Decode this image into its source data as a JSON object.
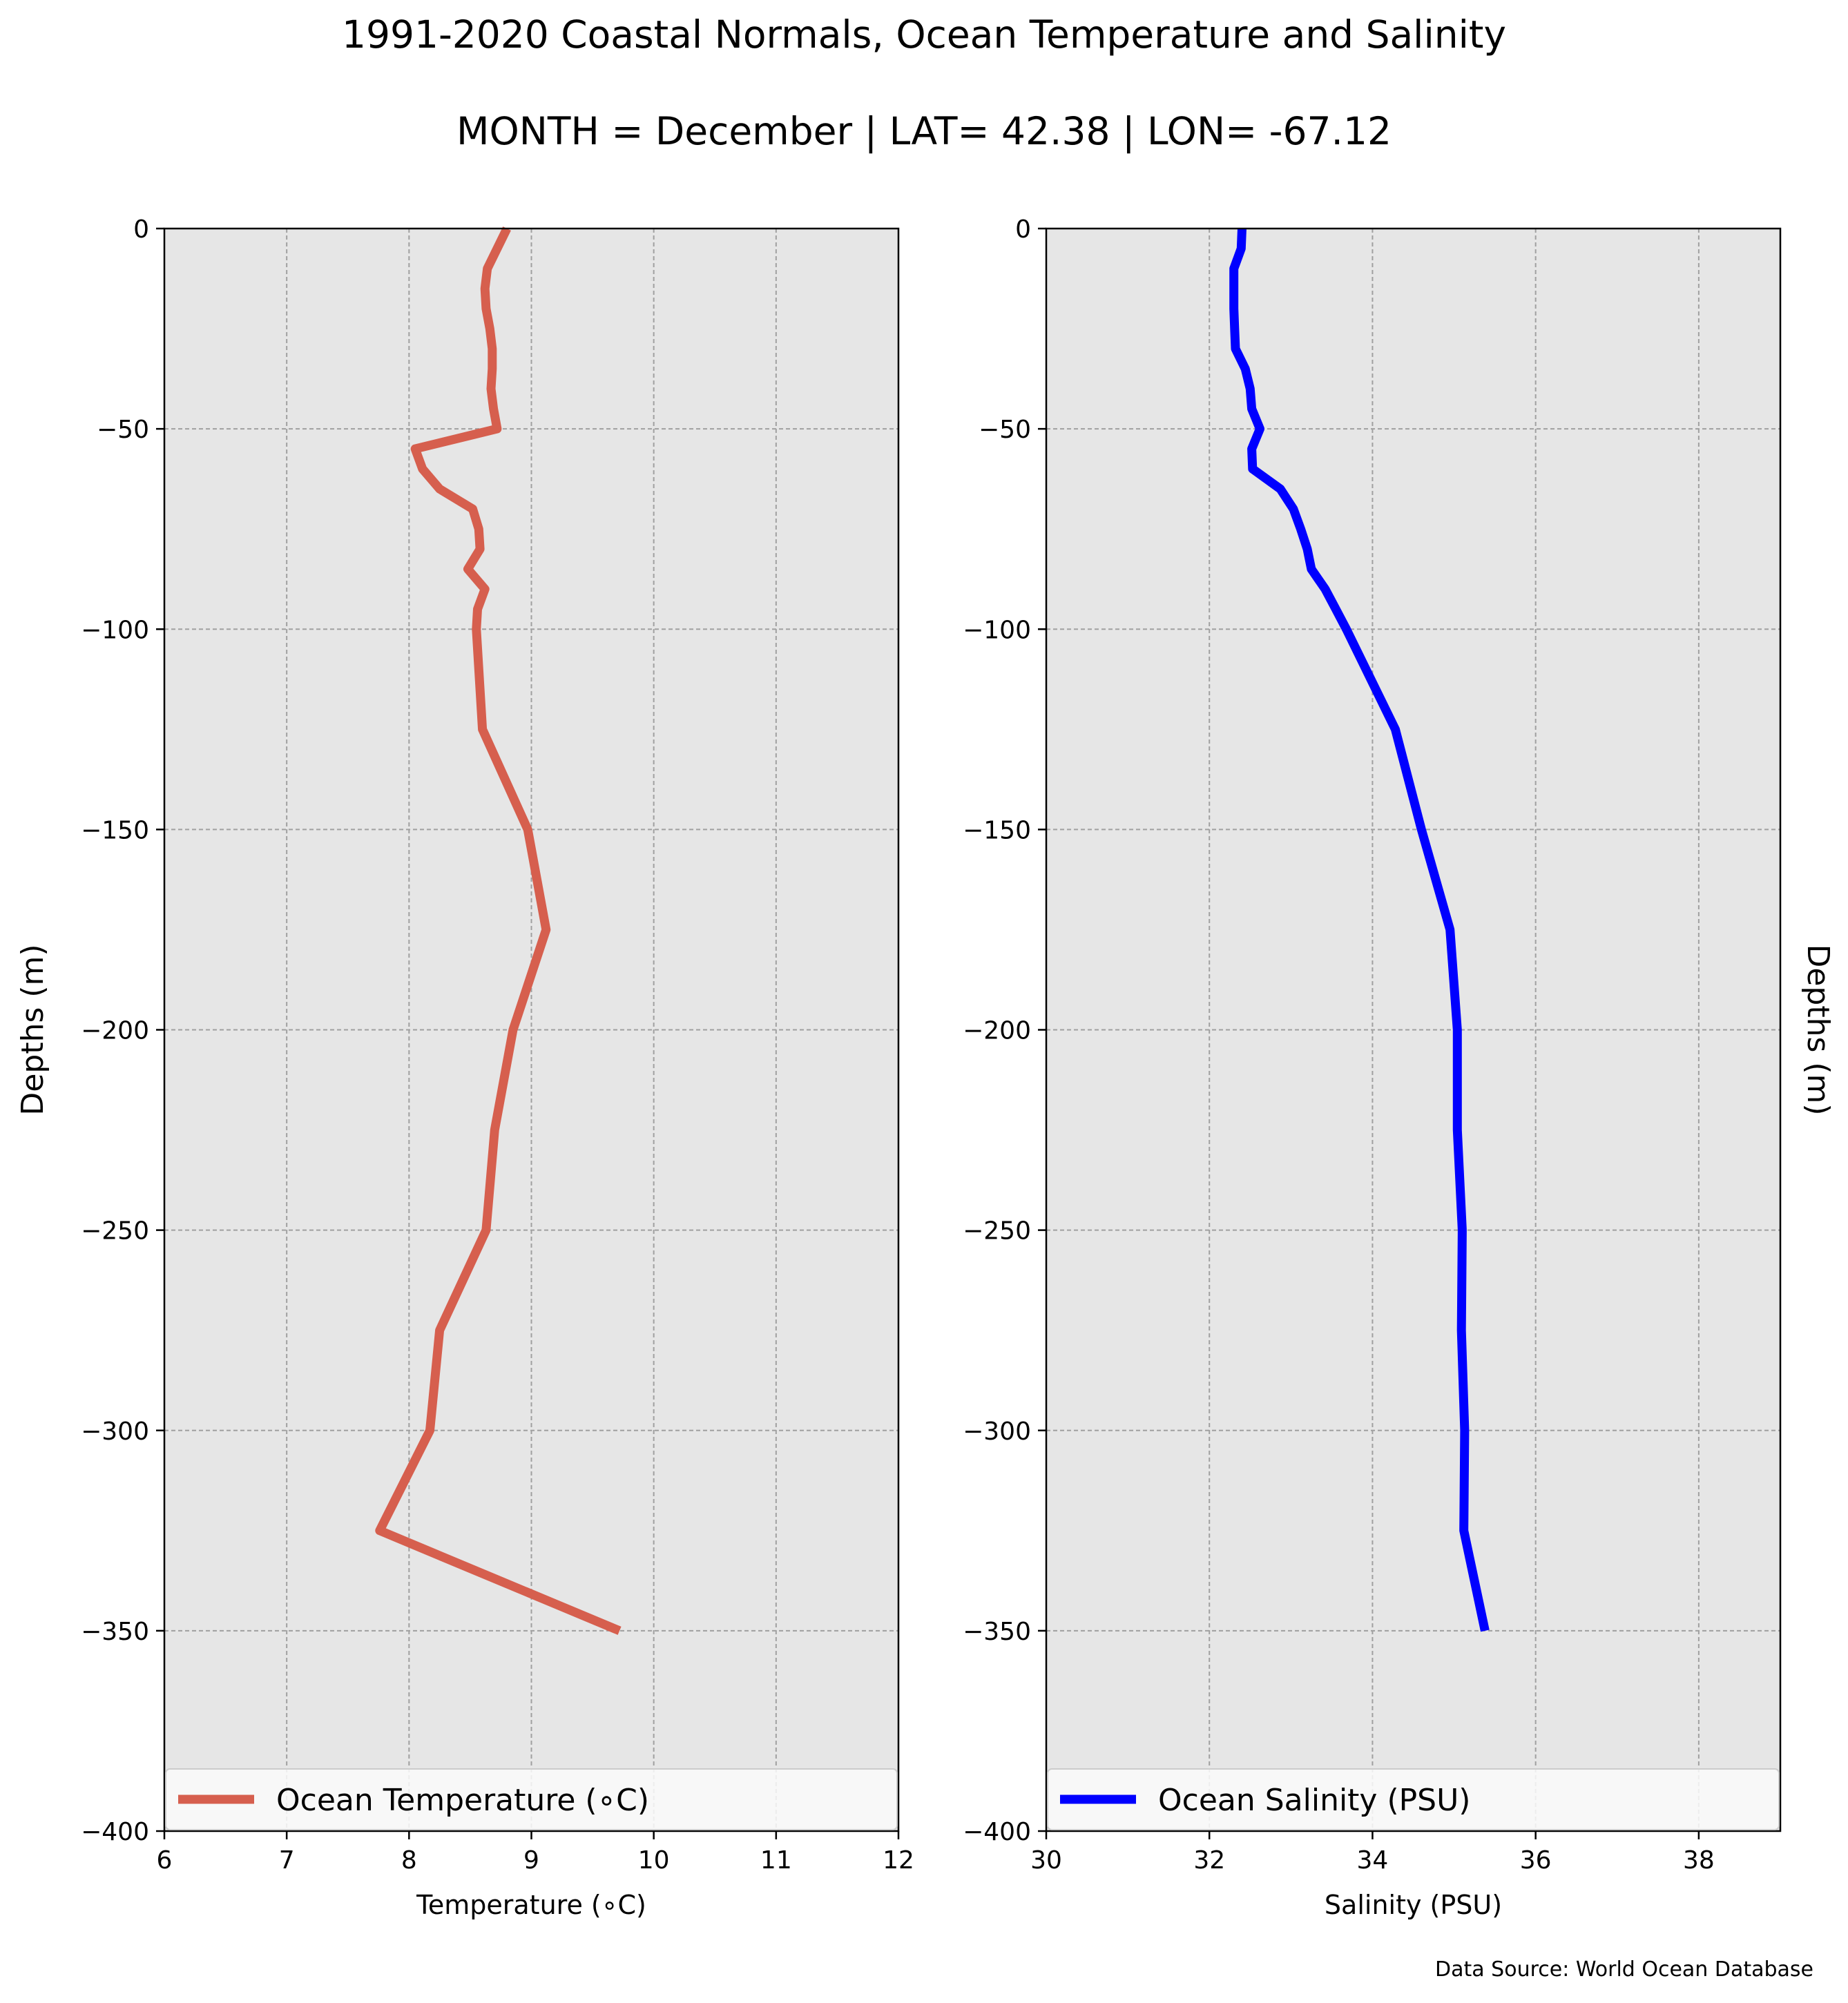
{
  "title": "1991-2020 Coastal Normals, Ocean Temperature and Salinity",
  "subtitle": "MONTH = December | LAT= 42.38 | LON= -67.12",
  "source": "Data Source: World Ocean Database",
  "chart_data": [
    {
      "type": "line",
      "xlabel": "Temperature (∘C)",
      "ylabel": "Depths (m)",
      "xlim": [
        6,
        12
      ],
      "ylim": [
        -400,
        0
      ],
      "xticks": [
        6,
        7,
        8,
        9,
        10,
        11,
        12
      ],
      "yticks": [
        0,
        -50,
        -100,
        -150,
        -200,
        -250,
        -300,
        -350,
        -400
      ],
      "ytick_labels": [
        "0",
        "−50",
        "−100",
        "−150",
        "−200",
        "−250",
        "−300",
        "−350",
        "−400"
      ],
      "grid": true,
      "legend_position": "bottom",
      "series": [
        {
          "name": "Ocean Temperature (∘C)",
          "color": "#d65f4e",
          "points": [
            [
              8.8,
              0
            ],
            [
              8.72,
              -5
            ],
            [
              8.64,
              -10
            ],
            [
              8.62,
              -15
            ],
            [
              8.63,
              -20
            ],
            [
              8.66,
              -25
            ],
            [
              8.68,
              -30
            ],
            [
              8.68,
              -35
            ],
            [
              8.67,
              -40
            ],
            [
              8.69,
              -45
            ],
            [
              8.72,
              -50
            ],
            [
              8.05,
              -55
            ],
            [
              8.11,
              -60
            ],
            [
              8.25,
              -65
            ],
            [
              8.52,
              -70
            ],
            [
              8.57,
              -75
            ],
            [
              8.58,
              -80
            ],
            [
              8.48,
              -85
            ],
            [
              8.62,
              -90
            ],
            [
              8.56,
              -95
            ],
            [
              8.55,
              -100
            ],
            [
              8.6,
              -125
            ],
            [
              8.97,
              -150
            ],
            [
              9.12,
              -175
            ],
            [
              8.85,
              -200
            ],
            [
              8.7,
              -225
            ],
            [
              8.63,
              -250
            ],
            [
              8.25,
              -275
            ],
            [
              8.17,
              -300
            ],
            [
              7.76,
              -325
            ],
            [
              9.72,
              -350
            ]
          ]
        }
      ]
    },
    {
      "type": "line",
      "xlabel": "Salinity (PSU)",
      "ylabel": "Depths (m)",
      "xlim": [
        30,
        39
      ],
      "ylim": [
        -400,
        0
      ],
      "xticks": [
        30,
        32,
        34,
        36,
        38
      ],
      "yticks": [
        0,
        -50,
        -100,
        -150,
        -200,
        -250,
        -300,
        -350,
        -400
      ],
      "ytick_labels": [
        "0",
        "−50",
        "−100",
        "−150",
        "−200",
        "−250",
        "−300",
        "−350",
        "−400"
      ],
      "grid": true,
      "legend_position": "bottom",
      "series": [
        {
          "name": "Ocean Salinity (PSU)",
          "color": "#0000ff",
          "points": [
            [
              32.4,
              0
            ],
            [
              32.39,
              -5
            ],
            [
              32.3,
              -10
            ],
            [
              32.3,
              -15
            ],
            [
              32.3,
              -20
            ],
            [
              32.31,
              -25
            ],
            [
              32.32,
              -30
            ],
            [
              32.44,
              -35
            ],
            [
              32.5,
              -40
            ],
            [
              32.52,
              -45
            ],
            [
              32.62,
              -50
            ],
            [
              32.52,
              -55
            ],
            [
              32.53,
              -60
            ],
            [
              32.87,
              -65
            ],
            [
              33.03,
              -70
            ],
            [
              33.12,
              -75
            ],
            [
              33.2,
              -80
            ],
            [
              33.25,
              -85
            ],
            [
              33.42,
              -90
            ],
            [
              33.55,
              -95
            ],
            [
              33.68,
              -100
            ],
            [
              34.28,
              -125
            ],
            [
              34.6,
              -150
            ],
            [
              34.95,
              -175
            ],
            [
              35.04,
              -200
            ],
            [
              35.04,
              -225
            ],
            [
              35.1,
              -250
            ],
            [
              35.09,
              -275
            ],
            [
              35.13,
              -300
            ],
            [
              35.12,
              -325
            ],
            [
              35.38,
              -350
            ]
          ]
        }
      ]
    }
  ]
}
